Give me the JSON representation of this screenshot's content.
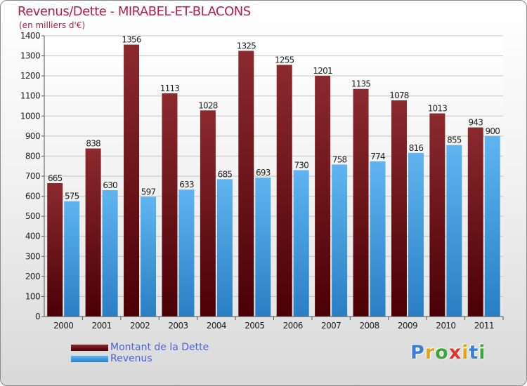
{
  "title": "Revenus/Dette - MIRABEL-ET-BLACONS",
  "subtitle": "(en milliers d'€)",
  "logo": {
    "letters": [
      "P",
      "r",
      "o",
      "x",
      "i",
      "t",
      "i"
    ],
    "colors": [
      "#3b7fd1",
      "#e8a21a",
      "#3ca63c",
      "#d33a2a",
      "#e8a21a",
      "#3b7fd1",
      "#3ca63c"
    ]
  },
  "legend": [
    {
      "label": "Montant de la Dette",
      "color": "#6e0f12"
    },
    {
      "label": "Revenus",
      "color": "#4aa3e6"
    }
  ],
  "chart_data": {
    "type": "bar",
    "title": "Revenus/Dette - MIRABEL-ET-BLACONS",
    "ylabel": "(en milliers d'€)",
    "xlabel": "",
    "ylim": [
      0,
      1400
    ],
    "yticks": [
      0,
      100,
      200,
      300,
      400,
      500,
      600,
      700,
      800,
      900,
      1000,
      1100,
      1200,
      1300,
      1400
    ],
    "categories": [
      "2000",
      "2001",
      "2002",
      "2003",
      "2004",
      "2005",
      "2006",
      "2007",
      "2008",
      "2009",
      "2010",
      "2011"
    ],
    "grid": true,
    "legend_position": "bottom-left",
    "series": [
      {
        "name": "Montant de la Dette",
        "color_top": "#8b2a2f",
        "color_bottom": "#4a0005",
        "values": [
          665,
          838,
          1356,
          1113,
          1028,
          1325,
          1255,
          1201,
          1135,
          1078,
          1013,
          943
        ]
      },
      {
        "name": "Revenus",
        "color_top": "#5fb4f0",
        "color_bottom": "#2a7fc4",
        "values": [
          575,
          630,
          597,
          633,
          685,
          693,
          730,
          758,
          774,
          816,
          855,
          900
        ]
      }
    ]
  }
}
